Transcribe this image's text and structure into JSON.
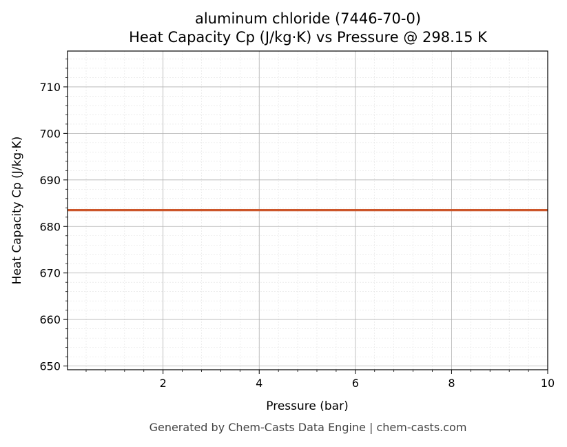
{
  "chart_data": {
    "type": "line",
    "title_line1": "aluminum chloride (7446-70-0)",
    "title_line2": "Heat Capacity Cp (J/kg·K) vs Pressure @ 298.15 K",
    "xlabel": "Pressure (bar)",
    "ylabel": "Heat Capacity Cp (J/kg·K)",
    "xlim": [
      0.01325,
      10
    ],
    "ylim": [
      649.2,
      717.7
    ],
    "x_ticks": [
      2,
      4,
      6,
      8,
      10
    ],
    "y_ticks": [
      650,
      660,
      670,
      680,
      690,
      700,
      710
    ],
    "grid": true,
    "series": [
      {
        "color": "#cc5529",
        "x": [
          0.01325,
          1,
          2,
          3,
          4,
          5,
          6,
          7,
          8,
          9,
          10
        ],
        "y": [
          683.5,
          683.5,
          683.5,
          683.5,
          683.5,
          683.5,
          683.5,
          683.5,
          683.5,
          683.5,
          683.5
        ]
      }
    ]
  },
  "footer": "Generated by Chem-Casts Data Engine | chem-casts.com"
}
